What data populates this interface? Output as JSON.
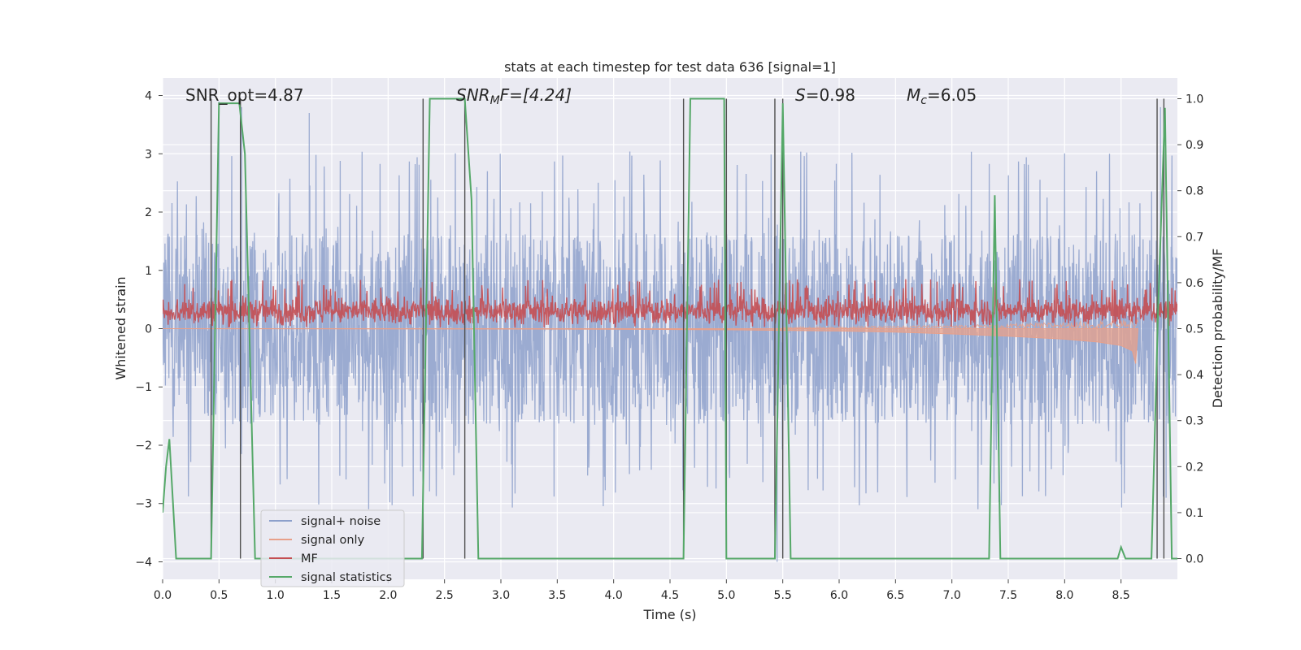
{
  "chart_data": {
    "type": "line",
    "title": "stats at each timestep for test data 636 [signal=1]",
    "xlabel": "Time (s)",
    "ylabel_left": "Whitened strain",
    "ylabel_right": "Detection probability/MF",
    "xlim": [
      0.0,
      9.0
    ],
    "ylim_left": [
      -4.3,
      4.3
    ],
    "ylim_right": [
      -0.045,
      1.045
    ],
    "x_ticks": [
      "0.0",
      "0.5",
      "1.0",
      "1.5",
      "2.0",
      "2.5",
      "3.0",
      "3.5",
      "4.0",
      "4.5",
      "5.0",
      "5.5",
      "6.0",
      "6.5",
      "7.0",
      "7.5",
      "8.0",
      "8.5"
    ],
    "y_left_ticks": [
      "4",
      "3",
      "2",
      "1",
      "0",
      "−1",
      "−2",
      "−3",
      "−4"
    ],
    "y_right_ticks": [
      "1.0",
      "0.9",
      "0.8",
      "0.7",
      "0.6",
      "0.5",
      "0.4",
      "0.3",
      "0.2",
      "0.1",
      "0.0"
    ],
    "grid": true,
    "legend_position": "lower-left",
    "annotations": {
      "snr_opt": "SNR_opt=4.87",
      "snr_mf_symbol": "SNR",
      "snr_mf_sub": "M",
      "snr_mf_rest": "F=[4.24]",
      "s_symbol": "S",
      "s_rest": "=0.98",
      "mc_symbol": "M",
      "mc_sub": "c",
      "mc_rest": "=6.05"
    },
    "colors": {
      "signal_noise": "#8da0cb",
      "signal_only": "#e8a08a",
      "mf": "#c44e52",
      "signal_statistics": "#55a868",
      "vlines": "#505050",
      "axes_bg": "#eaeaf2",
      "grid": "#ffffff"
    },
    "series": [
      {
        "name": "signal+ noise",
        "axis": "left",
        "envelope": {
          "typical_range": [
            -1.6,
            1.8
          ],
          "spike_range": [
            -3.6,
            3.7
          ],
          "note_points": [
            [
              0.5,
              3.9
            ],
            [
              0.7,
              3.8
            ],
            [
              1.3,
              3.7
            ],
            [
              5.45,
              -4.0
            ],
            [
              8.85,
              3.8
            ],
            [
              8.9,
              -2.9
            ]
          ]
        }
      },
      {
        "name": "signal only",
        "axis": "left",
        "points": [
          [
            0.0,
            0.0
          ],
          [
            4.0,
            -0.01
          ],
          [
            5.0,
            -0.02
          ],
          [
            6.0,
            -0.04
          ],
          [
            6.5,
            -0.06
          ],
          [
            7.0,
            -0.09
          ],
          [
            7.5,
            -0.13
          ],
          [
            8.0,
            -0.18
          ],
          [
            8.3,
            -0.23
          ],
          [
            8.5,
            -0.29
          ],
          [
            8.6,
            -0.38
          ],
          [
            8.63,
            -0.6
          ],
          [
            8.65,
            0.0
          ]
        ]
      },
      {
        "name": "MF",
        "axis": "left",
        "band": [
          0.0,
          0.85
        ],
        "points": [
          [
            0.0,
            0.3
          ],
          [
            1.0,
            0.32
          ],
          [
            2.0,
            0.3
          ],
          [
            3.0,
            0.31
          ],
          [
            4.0,
            0.3
          ],
          [
            5.0,
            0.31
          ],
          [
            6.0,
            0.3
          ],
          [
            7.0,
            0.31
          ],
          [
            8.0,
            0.3
          ],
          [
            9.0,
            0.3
          ]
        ]
      },
      {
        "name": "signal statistics",
        "axis": "right",
        "points": [
          [
            0.0,
            0.1
          ],
          [
            0.03,
            0.2
          ],
          [
            0.06,
            0.26
          ],
          [
            0.12,
            0.0
          ],
          [
            0.43,
            0.0
          ],
          [
            0.5,
            0.99
          ],
          [
            0.68,
            0.99
          ],
          [
            0.73,
            0.88
          ],
          [
            0.82,
            0.0
          ],
          [
            1.85,
            0.0
          ],
          [
            2.3,
            0.0
          ],
          [
            2.37,
            1.0
          ],
          [
            2.68,
            1.0
          ],
          [
            2.74,
            0.78
          ],
          [
            2.8,
            0.0
          ],
          [
            4.62,
            0.0
          ],
          [
            4.68,
            1.0
          ],
          [
            4.98,
            1.0
          ],
          [
            5.0,
            0.0
          ],
          [
            5.43,
            0.0
          ],
          [
            5.5,
            0.99
          ],
          [
            5.57,
            0.0
          ],
          [
            7.33,
            0.0
          ],
          [
            7.38,
            0.79
          ],
          [
            7.43,
            0.0
          ],
          [
            8.47,
            0.0
          ],
          [
            8.5,
            0.025
          ],
          [
            8.54,
            0.0
          ],
          [
            8.77,
            0.0
          ],
          [
            8.83,
            0.55
          ],
          [
            8.89,
            0.98
          ],
          [
            8.95,
            0.0
          ],
          [
            9.0,
            0.0
          ]
        ]
      }
    ],
    "vertical_markers": [
      0.43,
      0.69,
      2.31,
      2.68,
      4.62,
      5.0,
      5.43,
      5.5,
      8.82,
      8.88
    ]
  }
}
